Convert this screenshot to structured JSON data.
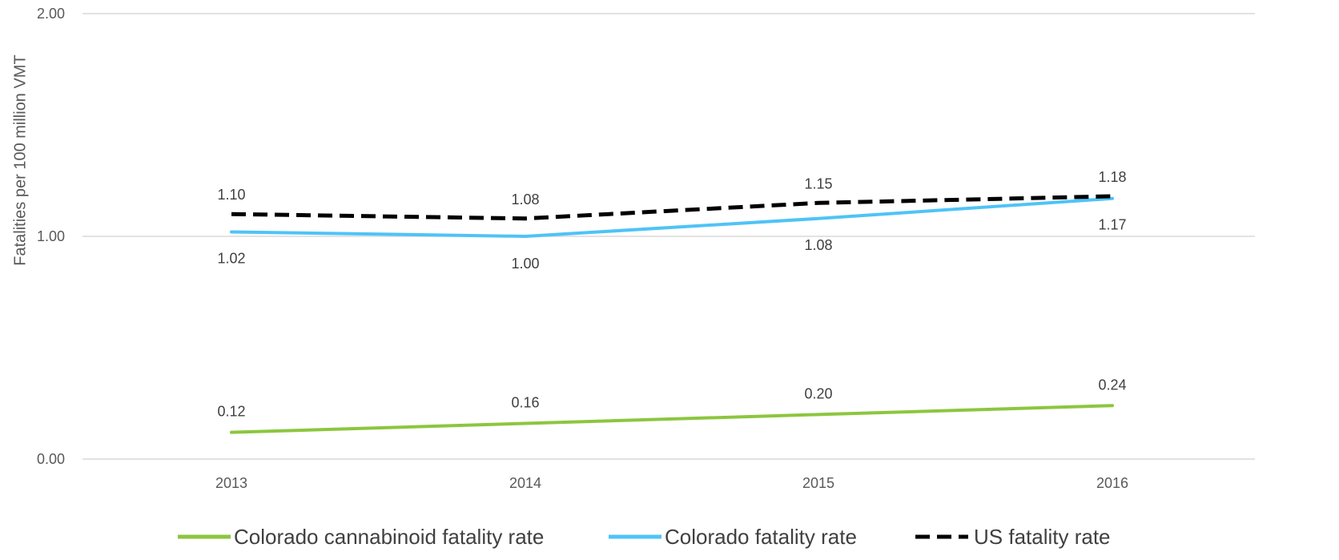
{
  "chart_data": {
    "type": "line",
    "title": "",
    "xlabel": "",
    "ylabel": "Fatalities per 100 million VMT",
    "categories": [
      "2013",
      "2014",
      "2015",
      "2016"
    ],
    "ylim": [
      0,
      2
    ],
    "y_ticks": [
      "0.00",
      "1.00",
      "2.00"
    ],
    "grid": true,
    "legend_position": "bottom",
    "series": [
      {
        "name": "Colorado cannabinoid fatality rate",
        "values": [
          0.12,
          0.16,
          0.2,
          0.24
        ],
        "labels": [
          "0.12",
          "0.16",
          "0.20",
          "0.24"
        ],
        "color": "#8CC63F",
        "dashed": false
      },
      {
        "name": "Colorado fatality rate",
        "values": [
          1.02,
          1.0,
          1.08,
          1.17
        ],
        "labels": [
          "1.02",
          "1.00",
          "1.08",
          "1.17"
        ],
        "color": "#4FC3F7",
        "dashed": false
      },
      {
        "name": "US fatality rate",
        "values": [
          1.1,
          1.08,
          1.15,
          1.18
        ],
        "labels": [
          "1.10",
          "1.08",
          "1.15",
          "1.18"
        ],
        "color": "#000000",
        "dashed": true
      }
    ]
  }
}
